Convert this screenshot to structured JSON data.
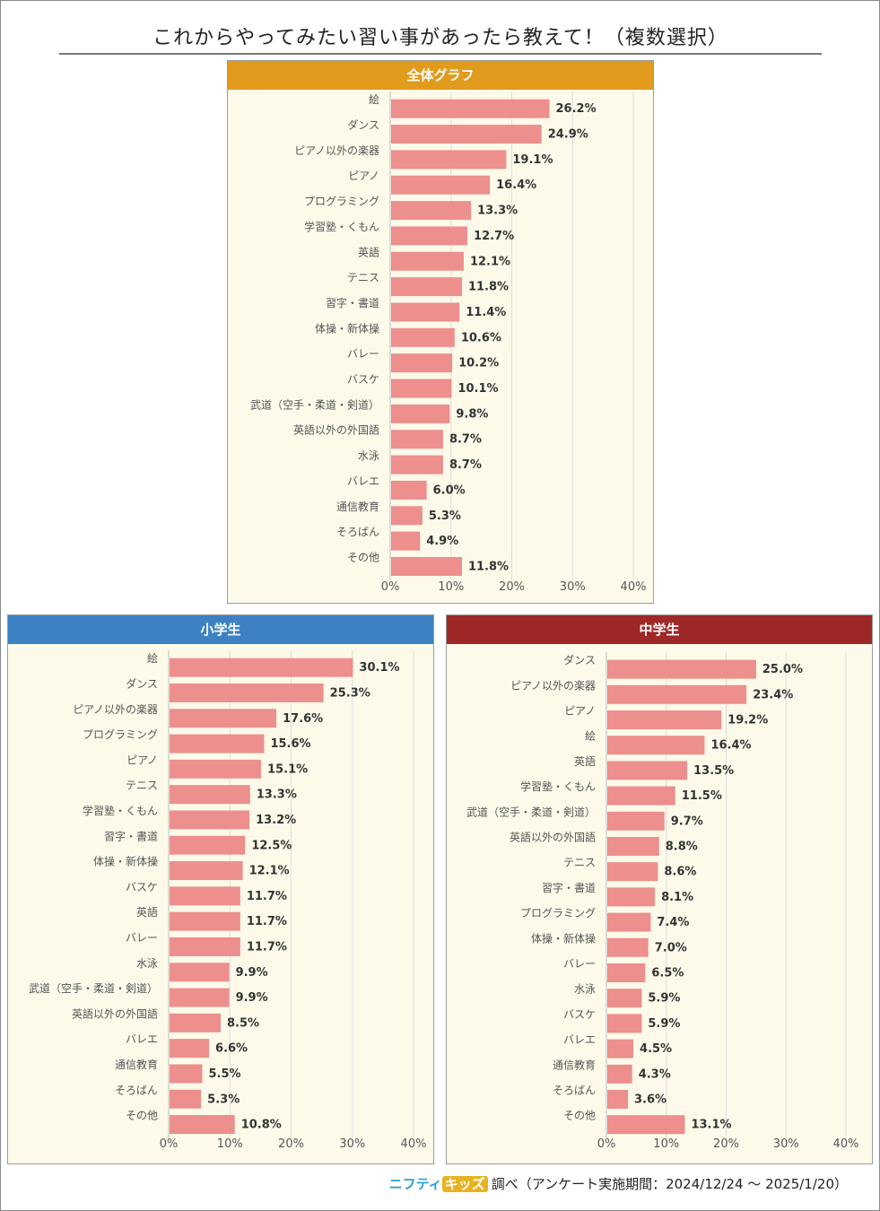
{
  "title": "これからやってみたい習い事があったら教えて！（複数選択）",
  "footer": {
    "logo_part1": "ニフティ",
    "logo_part2": "キッズ",
    "text": "調べ（アンケート実施期間：2024/12/24 ～ 2025/1/20）"
  },
  "colors": {
    "bar": "#ec8f8d",
    "plot_bg": "#fdfaea",
    "grid": "#dddddd",
    "overall": "#e19b1d",
    "elementary": "#3c82c3",
    "junior_high": "#9e2727"
  },
  "chart_data": [
    {
      "type": "bar",
      "orientation": "horizontal",
      "title": "全体グラフ",
      "categories": [
        "絵",
        "ダンス",
        "ピアノ以外の楽器",
        "ピアノ",
        "プログラミング",
        "学習塾・くもん",
        "英語",
        "テニス",
        "習字・書道",
        "体操・新体操",
        "バレー",
        "バスケ",
        "武道（空手・柔道・剣道）",
        "英語以外の外国語",
        "水泳",
        "バレエ",
        "通信教育",
        "そろばん",
        "その他"
      ],
      "values": [
        26.2,
        24.9,
        19.1,
        16.4,
        13.3,
        12.7,
        12.1,
        11.8,
        11.4,
        10.6,
        10.2,
        10.1,
        9.8,
        8.7,
        8.7,
        6.0,
        5.3,
        4.9,
        11.8
      ],
      "value_labels": [
        "26.2%",
        "24.9%",
        "19.1%",
        "16.4%",
        "13.3%",
        "12.7%",
        "12.1%",
        "11.8%",
        "11.4%",
        "10.6%",
        "10.2%",
        "10.1%",
        "9.8%",
        "8.7%",
        "8.7%",
        "6.0%",
        "5.3%",
        "4.9%",
        "11.8%"
      ],
      "xlim": [
        0,
        40
      ],
      "xticks": [
        "0%",
        "10%",
        "20%",
        "30%",
        "40%"
      ],
      "grid": true
    },
    {
      "type": "bar",
      "orientation": "horizontal",
      "title": "小学生",
      "categories": [
        "絵",
        "ダンス",
        "ピアノ以外の楽器",
        "プログラミング",
        "ピアノ",
        "テニス",
        "学習塾・くもん",
        "習字・書道",
        "体操・新体操",
        "バスケ",
        "英語",
        "バレー",
        "水泳",
        "武道（空手・柔道・剣道）",
        "英語以外の外国語",
        "バレエ",
        "通信教育",
        "そろばん",
        "その他"
      ],
      "values": [
        30.1,
        25.3,
        17.6,
        15.6,
        15.1,
        13.3,
        13.2,
        12.5,
        12.1,
        11.7,
        11.7,
        11.7,
        9.9,
        9.9,
        8.5,
        6.6,
        5.5,
        5.3,
        10.8
      ],
      "value_labels": [
        "30.1%",
        "25.3%",
        "17.6%",
        "15.6%",
        "15.1%",
        "13.3%",
        "13.2%",
        "12.5%",
        "12.1%",
        "11.7%",
        "11.7%",
        "11.7%",
        "9.9%",
        "9.9%",
        "8.5%",
        "6.6%",
        "5.5%",
        "5.3%",
        "10.8%"
      ],
      "xlim": [
        0,
        40
      ],
      "xticks": [
        "0%",
        "10%",
        "20%",
        "30%",
        "40%"
      ],
      "grid": true
    },
    {
      "type": "bar",
      "orientation": "horizontal",
      "title": "中学生",
      "categories": [
        "ダンス",
        "ピアノ以外の楽器",
        "ピアノ",
        "絵",
        "英語",
        "学習塾・くもん",
        "武道（空手・柔道・剣道）",
        "英語以外の外国語",
        "テニス",
        "習字・書道",
        "プログラミング",
        "体操・新体操",
        "バレー",
        "水泳",
        "バスケ",
        "バレエ",
        "通信教育",
        "そろばん",
        "その他"
      ],
      "values": [
        25.0,
        23.4,
        19.2,
        16.4,
        13.5,
        11.5,
        9.7,
        8.8,
        8.6,
        8.1,
        7.4,
        7.0,
        6.5,
        5.9,
        5.9,
        4.5,
        4.3,
        3.6,
        13.1
      ],
      "value_labels": [
        "25.0%",
        "23.4%",
        "19.2%",
        "16.4%",
        "13.5%",
        "11.5%",
        "9.7%",
        "8.8%",
        "8.6%",
        "8.1%",
        "7.4%",
        "7.0%",
        "6.5%",
        "5.9%",
        "5.9%",
        "4.5%",
        "4.3%",
        "3.6%",
        "13.1%"
      ],
      "xlim": [
        0,
        40
      ],
      "xticks": [
        "0%",
        "10%",
        "20%",
        "30%",
        "40%"
      ],
      "grid": true
    }
  ]
}
